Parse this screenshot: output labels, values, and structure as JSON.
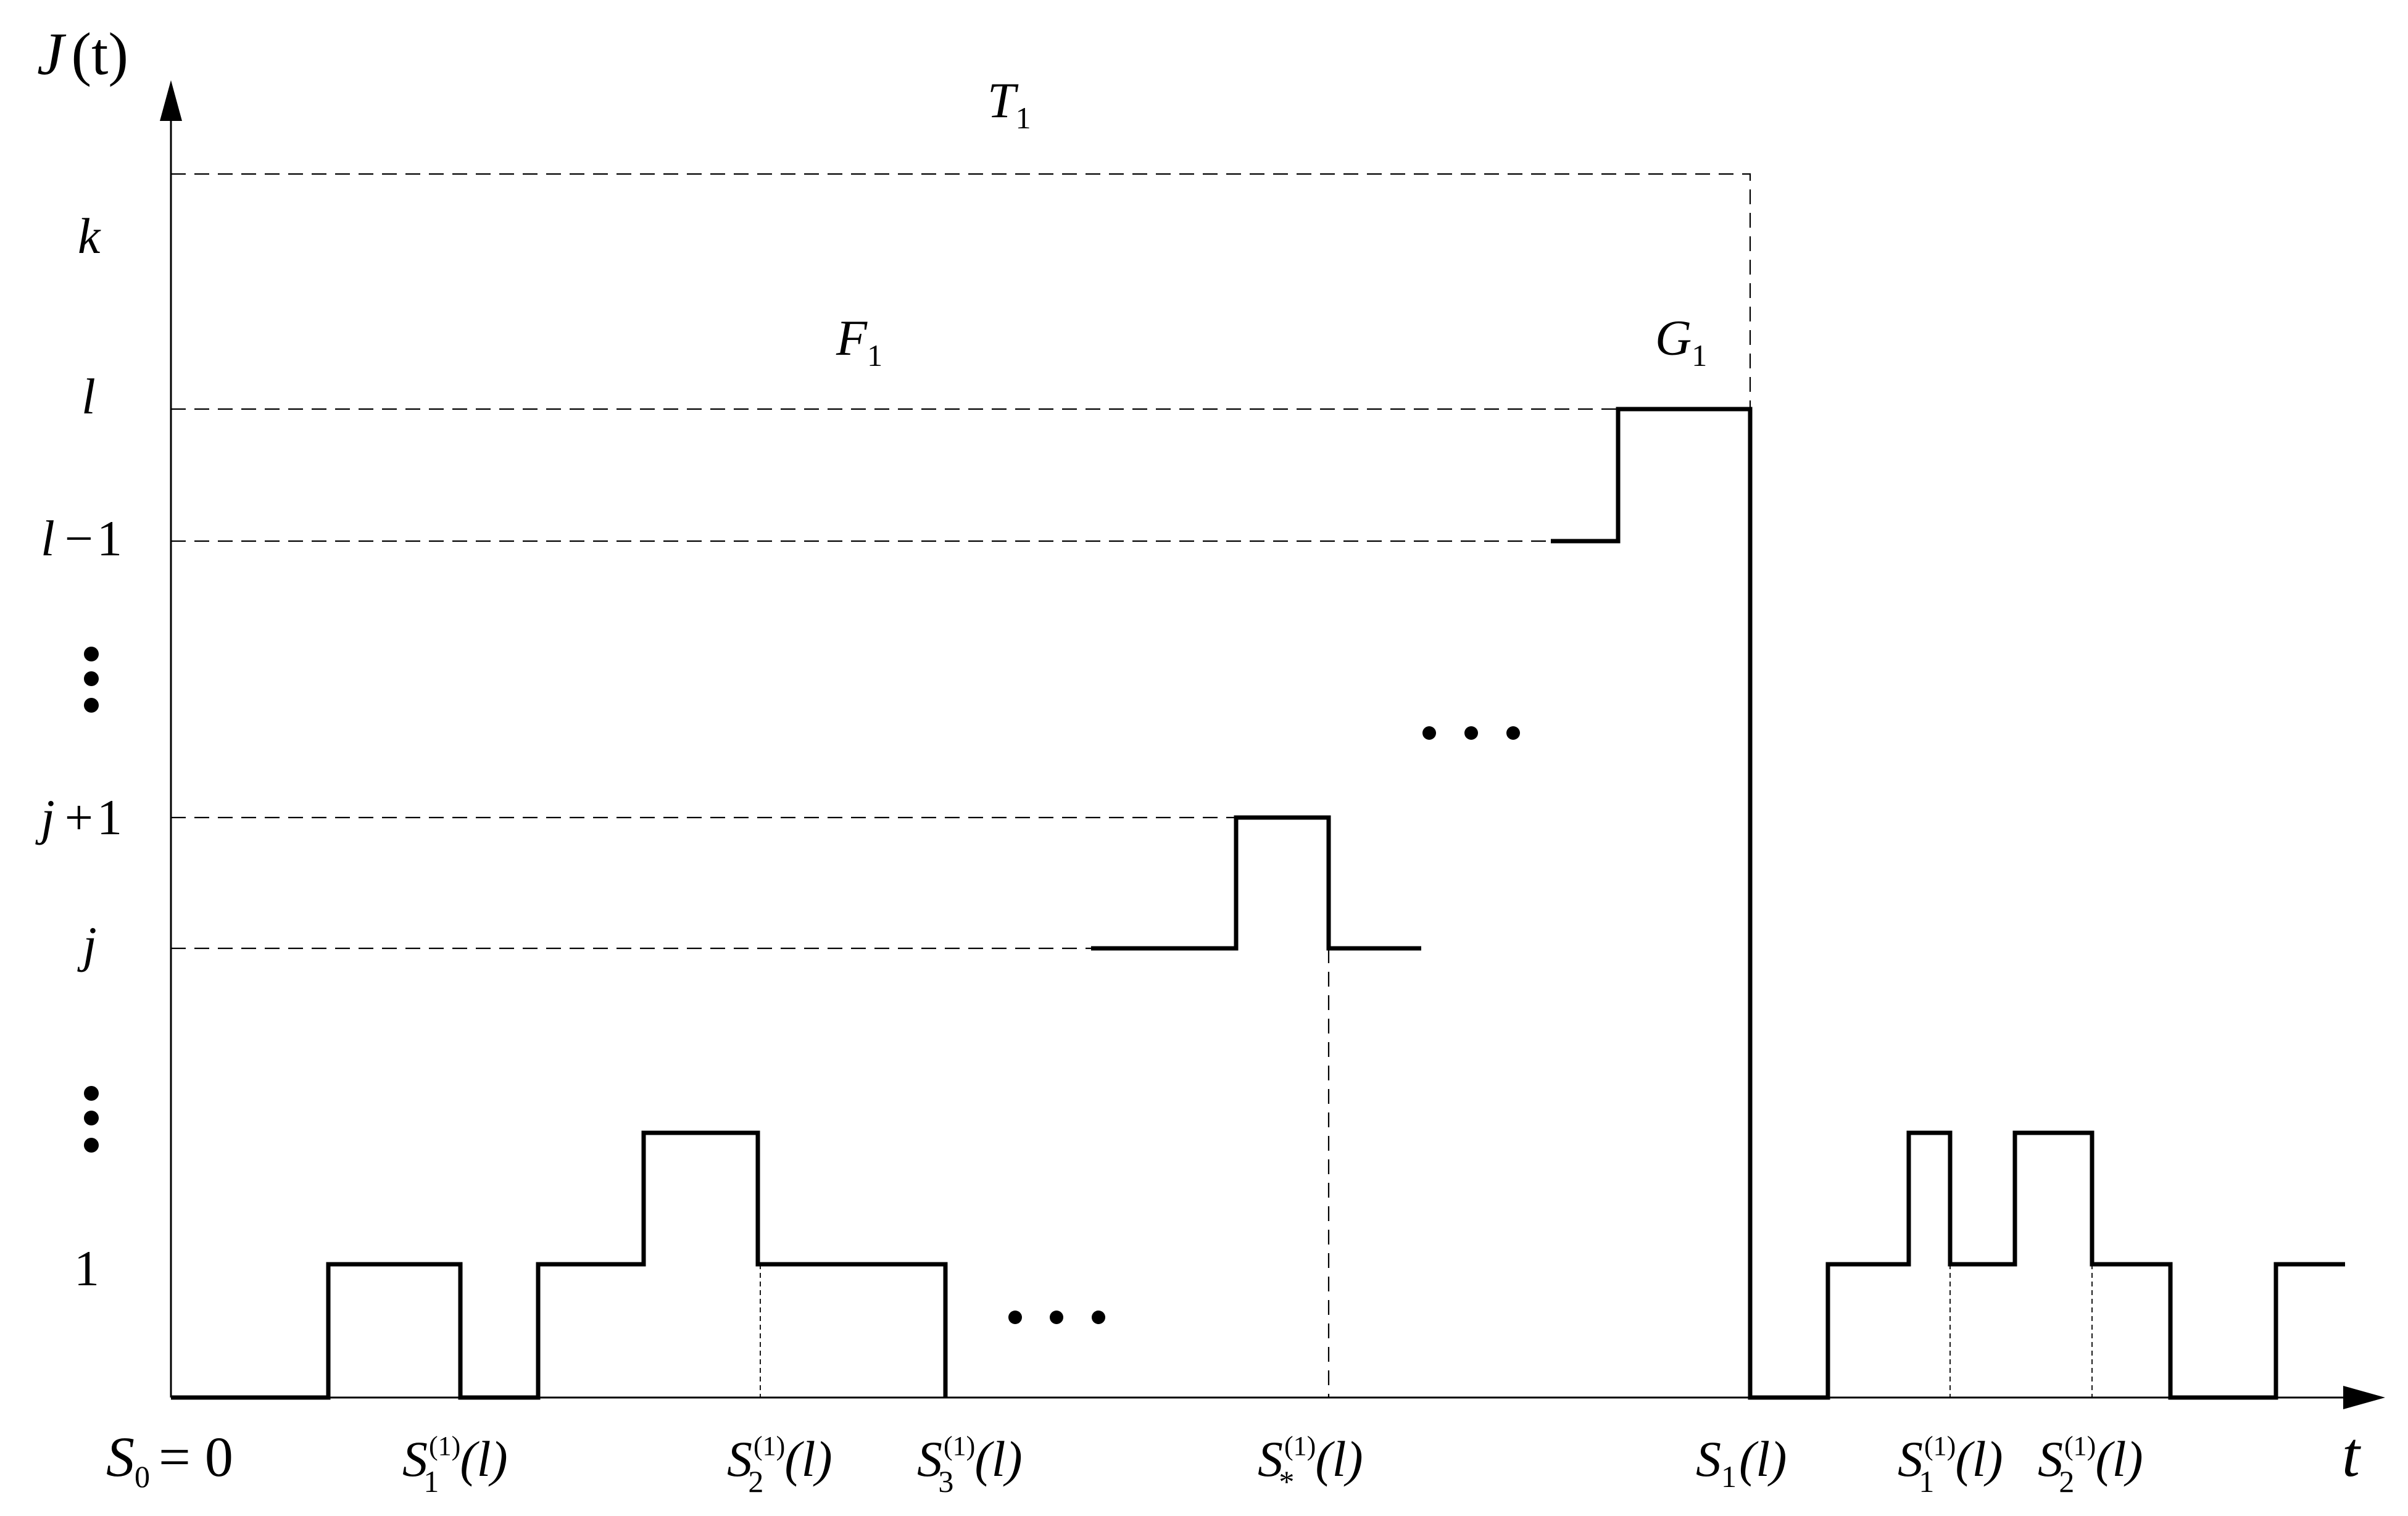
{
  "axes": {
    "y_name": "J",
    "y_arg": "(t)",
    "x_name": "t",
    "origin": {
      "name": "S",
      "sub": "0",
      "rel": "= 0"
    }
  },
  "y_levels": {
    "k": "k",
    "l": "l",
    "l_minus_1": {
      "var": "l",
      "op": "−",
      "num": "1"
    },
    "j_plus_1": {
      "var": "j",
      "op": "+",
      "num": "1"
    },
    "j": "j",
    "one": "1"
  },
  "region_labels": {
    "T1": {
      "name": "T",
      "sub": "1"
    },
    "F1": {
      "name": "F",
      "sub": "1"
    },
    "G1": {
      "name": "G",
      "sub": "1"
    }
  },
  "x_markers": {
    "s1": {
      "name": "S",
      "sub": "1",
      "sup": "(1)",
      "arg": "(l)"
    },
    "s2": {
      "name": "S",
      "sub": "2",
      "sup": "(1)",
      "arg": "(l)"
    },
    "s3": {
      "name": "S",
      "sub": "3",
      "sup": "(1)",
      "arg": "(l)"
    },
    "sstar": {
      "name": "S",
      "sub": "*",
      "sup": "(1)",
      "arg": "(l)"
    },
    "S1": {
      "name": "S",
      "sub": "1",
      "arg": "(l)"
    },
    "s1b": {
      "name": "S",
      "sub": "1",
      "sup": "(1)",
      "arg": "(l)"
    },
    "s2b": {
      "name": "S",
      "sub": "2",
      "sup": "(1)",
      "arg": "(l)"
    }
  }
}
